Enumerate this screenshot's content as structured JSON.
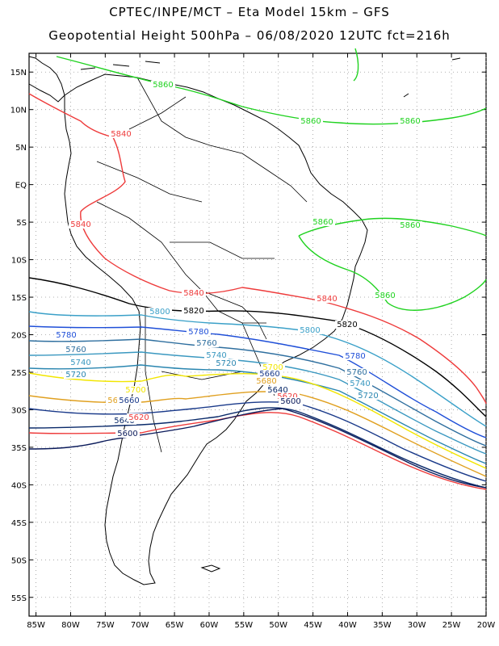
{
  "header": {
    "line1": "CPTEC/INPE/MCT –  Eta Model 15km – GFS",
    "line2": "Geopotential Height 500hPa – 06/08/2020 12UTC fct=216h"
  },
  "axes": {
    "lat_labels": [
      "15N",
      "10N",
      "5N",
      "EQ",
      "5S",
      "10S",
      "15S",
      "20S",
      "25S",
      "30S",
      "35S",
      "40S",
      "45S",
      "50S",
      "55S"
    ],
    "lon_labels": [
      "85W",
      "80W",
      "75W",
      "70W",
      "65W",
      "60W",
      "55W",
      "50W",
      "45W",
      "40W",
      "35W",
      "30W",
      "25W",
      "20W"
    ]
  },
  "map": {
    "lat_range": [
      17.5,
      -57.5
    ],
    "lon_range": [
      -86,
      -20
    ],
    "grid": "dotted"
  },
  "contours": [
    {
      "value": 5860,
      "color": "#1fd21f",
      "labels": [
        "5860",
        "5860",
        "5860",
        "5860",
        "5860",
        "5860"
      ]
    },
    {
      "value": 5840,
      "color": "#ee3b3b",
      "labels": [
        "5840",
        "5840",
        "5840",
        "5840"
      ]
    },
    {
      "value": 5820,
      "color": "#000000",
      "labels": [
        "5820",
        "5820"
      ]
    },
    {
      "value": 5800,
      "color": "#3aa0c8",
      "labels": [
        "5800",
        "5800"
      ]
    },
    {
      "value": 5780,
      "color": "#1f4fd8",
      "labels": [
        "5780",
        "5780",
        "5780"
      ]
    },
    {
      "value": 5760,
      "color": "#2f6f9f",
      "labels": [
        "5760",
        "5760",
        "5760"
      ]
    },
    {
      "value": 5740,
      "color": "#3a98c0",
      "labels": [
        "5740",
        "5740",
        "5740"
      ]
    },
    {
      "value": 5720,
      "color": "#2a86b0",
      "labels": [
        "5720",
        "5720",
        "5720"
      ]
    },
    {
      "value": 5700,
      "color": "#f2e600",
      "labels": [
        "5700",
        "5700"
      ]
    },
    {
      "value": 5680,
      "color": "#e0a020",
      "labels": [
        "5680",
        "5680"
      ]
    },
    {
      "value": 5660,
      "color": "#1a3a8a",
      "labels": [
        "5660",
        "5660"
      ]
    },
    {
      "value": 5640,
      "color": "#0a2a6a",
      "labels": [
        "5640",
        "5640"
      ]
    },
    {
      "value": 5620,
      "color": "#ee3b3b",
      "labels": [
        "5620",
        "5620"
      ]
    },
    {
      "value": 5600,
      "color": "#0a1a5a",
      "labels": [
        "5600",
        "5600"
      ]
    }
  ],
  "colors": {
    "grid": "#999999",
    "coast": "#000000"
  }
}
